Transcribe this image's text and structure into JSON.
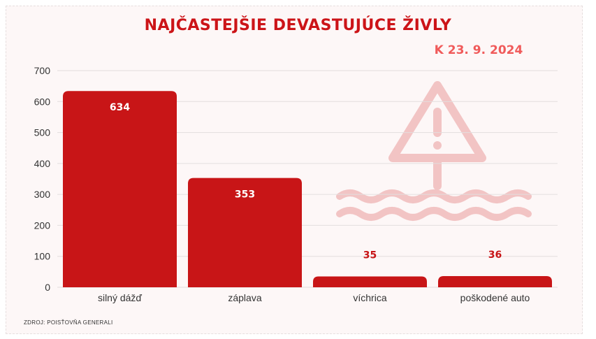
{
  "chart_data": {
    "type": "bar",
    "title": "NAJČASTEJŠIE DEVASTUJÚCE ŽIVLY",
    "subtitle": "K 23. 9. 2024",
    "categories": [
      "silný dážď",
      "záplava",
      "víchrica",
      "poškodené auto"
    ],
    "values": [
      634,
      353,
      35,
      36
    ],
    "ylim": [
      0,
      700
    ],
    "yticks": [
      0,
      100,
      200,
      300,
      400,
      500,
      600,
      700
    ],
    "grid": true,
    "legend": "none",
    "xlabel": "",
    "ylabel": ""
  },
  "source": "ZDROJ:  POISŤOVŇA GENERALI",
  "colors": {
    "bar": "#c81517",
    "title": "#cc1418",
    "subtitle": "#f05a5a",
    "grid": "#e3dede",
    "background": "#fdf7f7",
    "watermark": "#f2b8b8"
  },
  "decoration": {
    "icon": "warning-flood-icon"
  }
}
